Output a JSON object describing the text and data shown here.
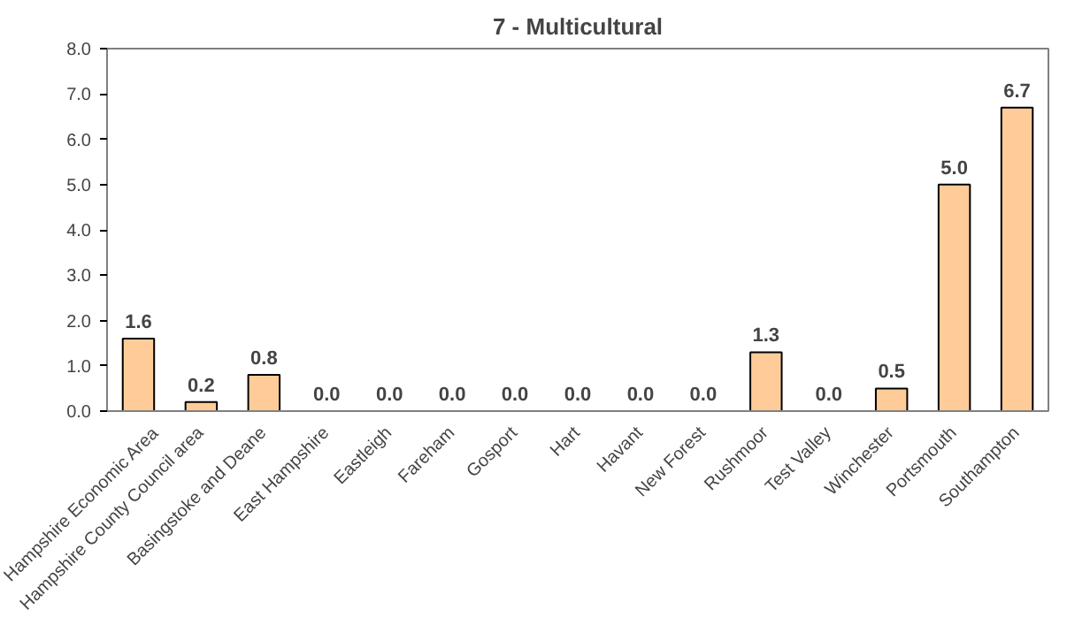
{
  "chart_data": {
    "type": "bar",
    "title": "7 - Multicultural",
    "categories": [
      "Hampshire Economic Area",
      "Hampshire County Council area",
      "Basingstoke and Deane",
      "East Hampshire",
      "Eastleigh",
      "Fareham",
      "Gosport",
      "Hart",
      "Havant",
      "New Forest",
      "Rushmoor",
      "Test Valley",
      "Winchester",
      "Portsmouth",
      "Southampton"
    ],
    "values": [
      1.6,
      0.2,
      0.8,
      0.0,
      0.0,
      0.0,
      0.0,
      0.0,
      0.0,
      0.0,
      1.3,
      0.0,
      0.5,
      5.0,
      6.7
    ],
    "value_labels": [
      "1.6",
      "0.2",
      "0.8",
      "0.0",
      "0.0",
      "0.0",
      "0.0",
      "0.0",
      "0.0",
      "0.0",
      "1.3",
      "0.0",
      "0.5",
      "5.0",
      "6.7"
    ],
    "color": "#ffcc99",
    "ylim": [
      0,
      8
    ],
    "yticks": [
      {
        "value": 0,
        "label": "0.0"
      },
      {
        "value": 1,
        "label": "1.0"
      },
      {
        "value": 2,
        "label": "2.0"
      },
      {
        "value": 3,
        "label": "3.0"
      },
      {
        "value": 4,
        "label": "4.0"
      },
      {
        "value": 5,
        "label": "5.0"
      },
      {
        "value": 6,
        "label": "6.0"
      },
      {
        "value": 7,
        "label": "7.0"
      },
      {
        "value": 8,
        "label": "8.0"
      }
    ],
    "grid": false
  }
}
